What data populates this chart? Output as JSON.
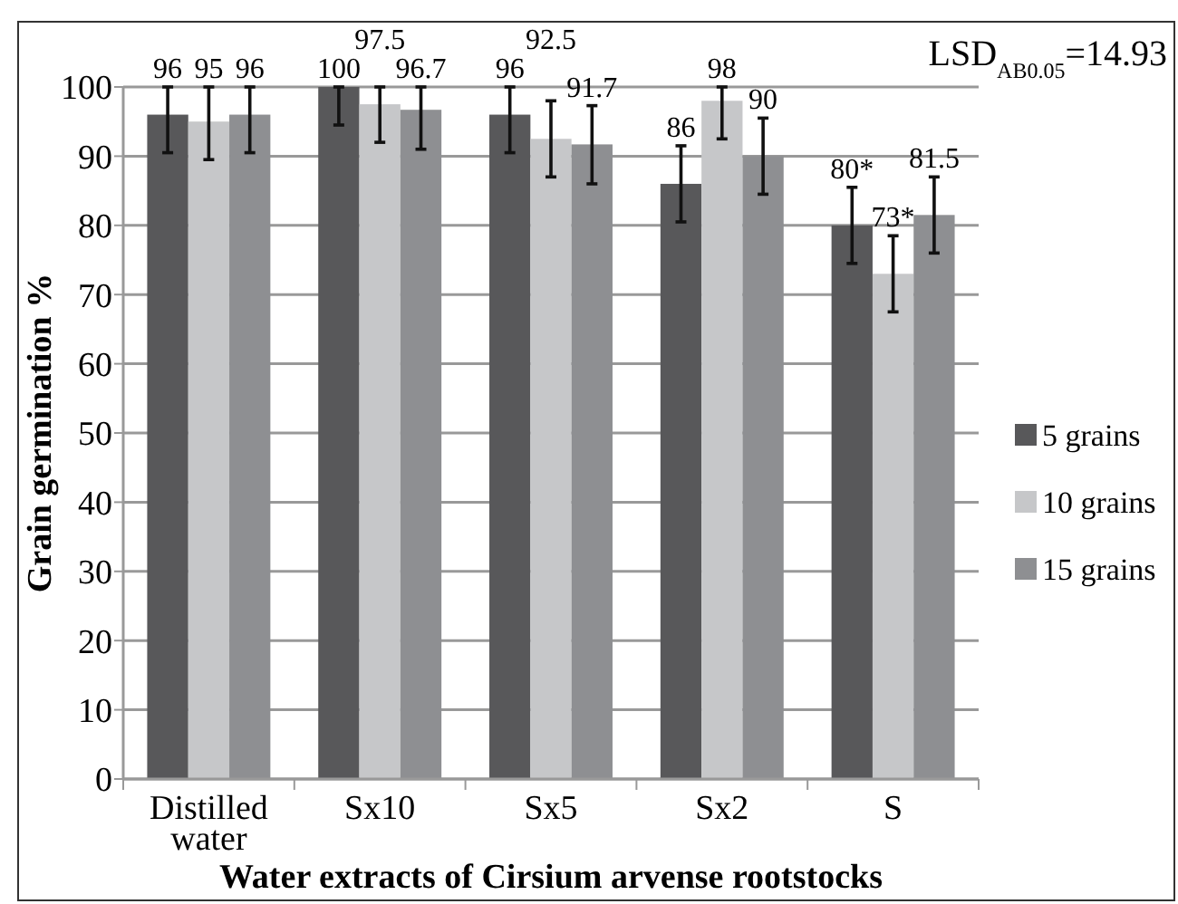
{
  "chart_data": {
    "type": "bar",
    "xlabel": "Water extracts of Cirsium arvense rootstocks",
    "ylabel": "Grain germination %",
    "categories": [
      "Distilled water",
      "Sx10",
      "Sx5",
      "Sx2",
      "S"
    ],
    "series": [
      {
        "name": "5 grains",
        "color": "#58585a",
        "values": [
          96,
          100,
          96,
          86,
          80
        ],
        "errors": [
          [
            90.5,
            100
          ],
          [
            94.5,
            100
          ],
          [
            90.5,
            100
          ],
          [
            80.5,
            91.5
          ],
          [
            74.5,
            85.5
          ]
        ],
        "value_labels": [
          "96",
          "100",
          "96",
          "86",
          "80*"
        ]
      },
      {
        "name": "10 grains",
        "color": "#c6c7c9",
        "values": [
          95,
          97.5,
          92.5,
          98,
          73
        ],
        "errors": [
          [
            89.5,
            100
          ],
          [
            92,
            100
          ],
          [
            87,
            98
          ],
          [
            92.5,
            100
          ],
          [
            67.5,
            78.5
          ]
        ],
        "value_labels": [
          "95",
          "97.5",
          "92.5",
          "98",
          "73*"
        ]
      },
      {
        "name": "15 grains",
        "color": "#8e8f92",
        "values": [
          96,
          96.7,
          91.7,
          90,
          81.5
        ],
        "errors": [
          [
            90.5,
            100
          ],
          [
            91,
            100
          ],
          [
            86,
            97.3
          ],
          [
            84.5,
            95.5
          ],
          [
            76,
            87
          ]
        ],
        "value_labels": [
          "96",
          "96.7",
          "91.7",
          "90",
          "81.5"
        ]
      }
    ],
    "ylim": [
      0,
      100
    ],
    "yticks": [
      0,
      10,
      20,
      30,
      40,
      50,
      60,
      70,
      80,
      90,
      100
    ],
    "grid": "y",
    "legend": "right",
    "annotations": [
      "LSD$_{AB0.05}$=14.93"
    ]
  }
}
